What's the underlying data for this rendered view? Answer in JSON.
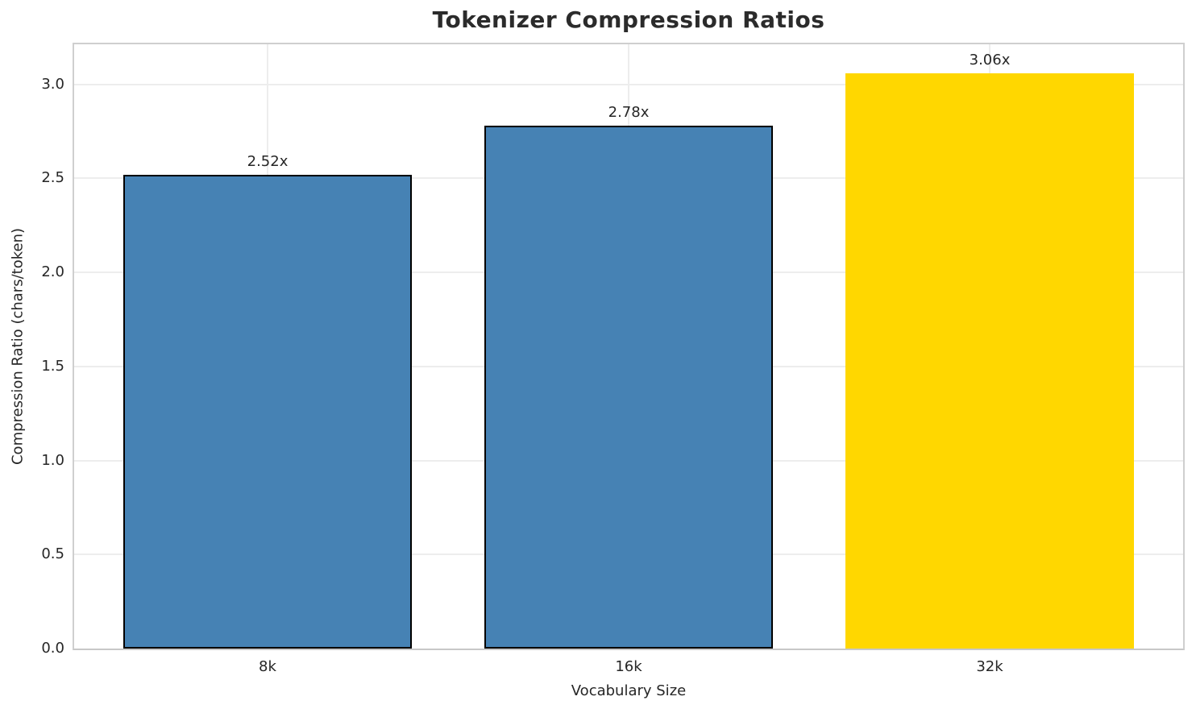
{
  "chart_data": {
    "type": "bar",
    "title": "Tokenizer Compression Ratios",
    "xlabel": "Vocabulary Size",
    "ylabel": "Compression Ratio (chars/token)",
    "categories": [
      "8k",
      "16k",
      "32k"
    ],
    "values": [
      2.52,
      2.78,
      3.06
    ],
    "bar_labels": [
      "2.52x",
      "2.78x",
      "3.06x"
    ],
    "bar_colors": [
      "#4682B4",
      "#4682B4",
      "#FFD700"
    ],
    "bar_edge_colors": [
      "#000000",
      "#000000",
      "none"
    ],
    "yticks": [
      "0.0",
      "0.5",
      "1.0",
      "1.5",
      "2.0",
      "2.5",
      "3.0"
    ],
    "ytick_values": [
      0.0,
      0.5,
      1.0,
      1.5,
      2.0,
      2.5,
      3.0
    ],
    "ylim": [
      0.0,
      3.213
    ],
    "grid": "on",
    "legend": "none",
    "grid_color": "#ededed",
    "spine_color": "#cfcfcf",
    "title_color": "#2b2b2b",
    "text_color": "#262626",
    "background_color": "#ffffff"
  }
}
